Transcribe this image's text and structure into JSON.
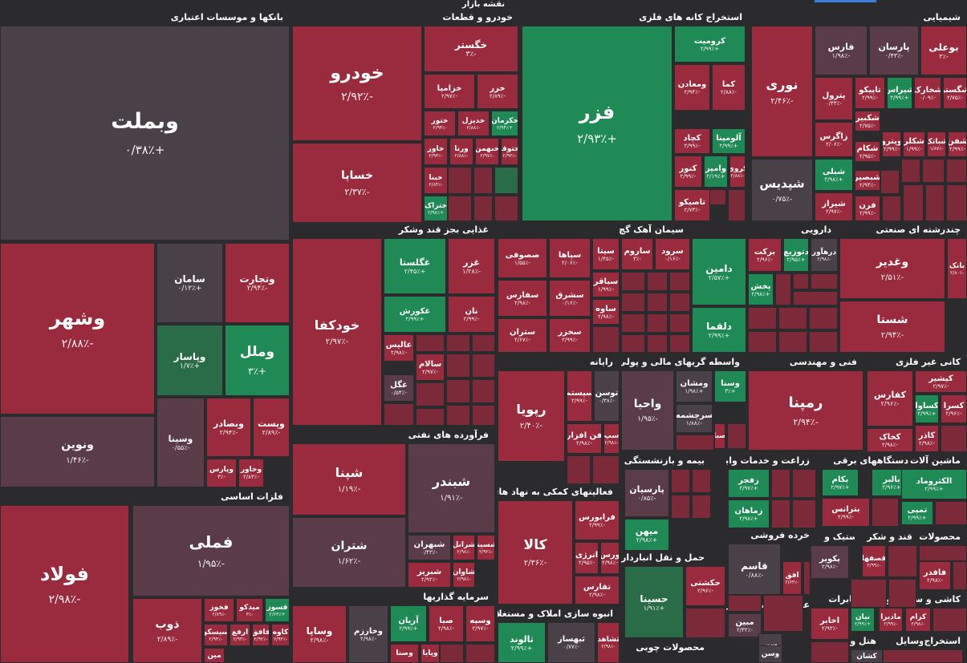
{
  "title": "نقشه بازار",
  "colors": {
    "red": "#9a2a3d",
    "red_dark": "#7c2a3a",
    "green": "#1f8a55",
    "green_dark": "#2a6b48",
    "neutral": "#4a4048",
    "neutral_red": "#5a3c48"
  },
  "headers": {
    "banks": "بانکها و موسسات اعتباری",
    "auto": "خودرو و قطعات",
    "metals_extract": "استخراج کانه های فلزی",
    "chemical": "شیمیایی",
    "basic_metals": "فلزات اساسی",
    "food": "غذایی بجز قند وشکر",
    "cement": "سیمان آهک گچ",
    "pharma": "دارویی",
    "multi": "چندرشته ای صنعتی",
    "refinery": "فرآورده های نفتی",
    "computer": "رایانه",
    "financial": "واسطه گریهای مالی و پولی",
    "engineering": "فنی و مهندسی",
    "nonmetal": "کانی غیر فلزی",
    "support": "فعالیتهای کمکی به نهاد های مالی",
    "insurance": "بیمه و بازنشستگی",
    "agri": "زراعت و خدمات وابسته",
    "electric": "دستگاههای برقی",
    "machinery": "ماشین آلات و",
    "investment": "سرمایه گذاریها",
    "construction": "انبوه سازی املاک و مستغلات",
    "transport": "حمل و نقل انبارداری و",
    "retail": "خرده فروشی",
    "rubber": "لاستیک و",
    "sugar": "قند و شکر",
    "products": "محصولات",
    "utility": "عرضه برق،گاز،بخار و",
    "telecom": "مخابرات",
    "products2": "محصولات",
    "ceramic": "کاشی و سرامیک",
    "wood": "محصولات چوبی",
    "hotel": "هتل و",
    "tools": "وسایل",
    "extraction2": "استخراج"
  },
  "tiles": [
    {
      "id": "vbmellat",
      "name": "وبملت",
      "val": "+۰/۳۸٪"
    },
    {
      "id": "vshahr",
      "name": "وشهر",
      "val": "-۲/۸۸٪"
    },
    {
      "id": "saman",
      "name": "سامان",
      "val": "+۰/۱۲٪"
    },
    {
      "id": "vtejarat",
      "name": "وتجارت",
      "val": "-۲/۹۴٪"
    },
    {
      "id": "vpasar",
      "name": "وپاسار",
      "val": "+۱/۷٪"
    },
    {
      "id": "vmellal",
      "name": "وملل",
      "val": "+۳٪"
    },
    {
      "id": "vnovin",
      "name": "ونوین",
      "val": "-۱/۴۶٪"
    },
    {
      "id": "vsina",
      "name": "وسینا",
      "val": "-۰/۵۵٪"
    },
    {
      "id": "vbsader",
      "name": "وبصادر",
      "val": "-۲/۹۴٪"
    },
    {
      "id": "vpost",
      "name": "وپست",
      "val": "-۲/۸۹٪"
    },
    {
      "id": "vkhavar",
      "name": "وخاور",
      "val": "-۲/۸۳٪"
    },
    {
      "id": "vparis",
      "name": "وپارس",
      "val": "-۳٪"
    },
    {
      "id": "khodro",
      "name": "خودرو",
      "val": "-۲/۹۲٪"
    },
    {
      "id": "khsapa",
      "name": "خساپا",
      "val": "-۲/۳۷٪"
    },
    {
      "id": "khgostar",
      "name": "خگستر",
      "val": "-۳٪"
    },
    {
      "id": "khzamia",
      "name": "خزامیا",
      "val": "-۲/۹۷٪"
    },
    {
      "id": "khzar",
      "name": "خزر",
      "val": "-۲/۸۹٪"
    },
    {
      "id": "khtoor",
      "name": "ختور",
      "val": "-۲/۹۴٪"
    },
    {
      "id": "khdizel",
      "name": "خدیزل",
      "val": "-۲/۸۸٪"
    },
    {
      "id": "khkerman",
      "name": "خکرمان",
      "val": "+۲/۹۴٪"
    },
    {
      "id": "khavar",
      "name": "خاور",
      "val": "-۲/۹۳٪"
    },
    {
      "id": "vrana",
      "name": "ورنا",
      "val": "-۲/۸۸٪"
    },
    {
      "id": "khbahman",
      "name": "خبهمن",
      "val": "-۲/۹۷٪"
    },
    {
      "id": "khtoko",
      "name": "ختوقا",
      "val": "-۲/۹۳٪"
    },
    {
      "id": "khbenz",
      "name": "خبنا",
      "val": "-۲/۸۴٪"
    },
    {
      "id": "khtrak",
      "name": "ختراک",
      "val": "+۲/۹۸٪"
    },
    {
      "id": "fazar",
      "name": "فزر",
      "val": "+۲/۹۳٪"
    },
    {
      "id": "kromit",
      "name": "کرومیت",
      "val": "+۲/۹۹٪"
    },
    {
      "id": "madan",
      "name": "ومعادن",
      "val": "-۲/۹۴٪"
    },
    {
      "id": "kama",
      "name": "کما",
      "val": "-۲/۸۸٪"
    },
    {
      "id": "kchad",
      "name": "کچاد",
      "val": "-۲/۹۹٪"
    },
    {
      "id": "alumina",
      "name": "آلومینا",
      "val": "+۲/۹۹٪"
    },
    {
      "id": "knoor",
      "name": "کنور",
      "val": "-۲/۹۹٪"
    },
    {
      "id": "vamir",
      "name": "وامیر",
      "val": "+۲/۱۹٪"
    },
    {
      "id": "kgol",
      "name": "کروی",
      "val": "-۲/۸۸٪"
    },
    {
      "id": "tasisko",
      "name": "تاصیکو",
      "val": "-۲/۷۳٪"
    },
    {
      "id": "noori",
      "name": "نوری",
      "val": "-۲/۴۶٪"
    },
    {
      "id": "shepdis",
      "name": "شپدیس",
      "val": "-۰/۷۵٪"
    },
    {
      "id": "fars",
      "name": "فارس",
      "val": "-۱/۹۸٪"
    },
    {
      "id": "parsan",
      "name": "پارسان",
      "val": "-۰/۴۳٪"
    },
    {
      "id": "buali",
      "name": "بوعلی",
      "val": "-۳٪"
    },
    {
      "id": "petrol",
      "name": "پترول",
      "val": "-۰/۴۳٪"
    },
    {
      "id": "tapiko",
      "name": "تاپیکو",
      "val": "-۲/۹۹٪"
    },
    {
      "id": "shiras",
      "name": "شیراس",
      "val": "+۲/۹۹٪"
    },
    {
      "id": "shkharak",
      "name": "شخارک",
      "val": "-۰/۰۹٪"
    },
    {
      "id": "shgostar",
      "name": "شگستر",
      "val": "-۲/۷۵٪"
    },
    {
      "id": "zagros",
      "name": "زاگرس",
      "val": "-۲/۰۶٪"
    },
    {
      "id": "shkbir",
      "name": "شکبیر",
      "val": "-۲/۷۵٪"
    },
    {
      "id": "shkalar",
      "name": "شکلر",
      "val": "-۱/۹۹٪"
    },
    {
      "id": "shbatik",
      "name": "شباتک",
      "val": "-۱/۸۷٪"
    },
    {
      "id": "shafan",
      "name": "شفن",
      "val": "-۲/۹۹٪"
    },
    {
      "id": "shkam",
      "name": "شکام",
      "val": "-۲/۹۵٪"
    },
    {
      "id": "shiba",
      "name": "شبلی",
      "val": "+۲/۹۸٪"
    },
    {
      "id": "vitro",
      "name": "ویترو",
      "val": "-۲/۹۹٪"
    },
    {
      "id": "shbasir",
      "name": "شبصیر",
      "val": "-۲/۹۴٪"
    },
    {
      "id": "shiraz",
      "name": "شیراز",
      "val": "-۲/۹۷٪"
    },
    {
      "id": "faran",
      "name": "فرن",
      "val": "-۲/۹۹٪"
    },
    {
      "id": "foolad",
      "name": "فولاد",
      "val": "-۲/۹۸٪"
    },
    {
      "id": "fameli",
      "name": "فملی",
      "val": "-۱/۹۵٪"
    },
    {
      "id": "zob",
      "name": "ذوب",
      "val": "-۲/۸۹٪"
    },
    {
      "id": "fkhoz",
      "name": "فخوز",
      "val": "-۲/۸۹٪"
    },
    {
      "id": "midko",
      "name": "میدکو",
      "val": "-۳٪"
    },
    {
      "id": "fasoz",
      "name": "فسوز",
      "val": "+۲/۶۳٪"
    },
    {
      "id": "sisko",
      "name": "سیسکو",
      "val": "-۲/۹۴٪"
    },
    {
      "id": "arfa",
      "name": "ارفع",
      "val": "-۲/۹۴٪"
    },
    {
      "id": "faghaf",
      "name": "فافق",
      "val": "-۲/۹۲٪"
    },
    {
      "id": "kave",
      "name": "کاوه",
      "val": "-۲/۹۴٪"
    },
    {
      "id": "mein",
      "name": "مین",
      "val": ""
    },
    {
      "id": "khodkafa",
      "name": "خودکفا",
      "val": "-۲/۹۷٪"
    },
    {
      "id": "ghgolesta",
      "name": "غگلستا",
      "val": "+۲/۴۵٪"
    },
    {
      "id": "ghazar",
      "name": "غزر",
      "val": "-۱/۲۸٪"
    },
    {
      "id": "ghkorosh",
      "name": "غکورش",
      "val": "+۲/۹۹٪"
    },
    {
      "id": "nan",
      "name": "نان",
      "val": "-۲/۹۹٪"
    },
    {
      "id": "alis",
      "name": "عالیس",
      "val": "-۲/۹۸٪"
    },
    {
      "id": "salam",
      "name": "سالام",
      "val": "-۲/۹۷٪"
    },
    {
      "id": "ghagol",
      "name": "غگل",
      "val": "-۰/۵۴٪"
    },
    {
      "id": "sasofi",
      "name": "صصوفی",
      "val": "-۱/۵۵٪"
    },
    {
      "id": "sipaha",
      "name": "سپاها",
      "val": "-۲/۰۶٪"
    },
    {
      "id": "sita",
      "name": "سیتا",
      "val": "-۱/۴۵٪"
    },
    {
      "id": "saroom",
      "name": "ساروم",
      "val": "-۳٪"
    },
    {
      "id": "sarood",
      "name": "سرود",
      "val": "-۰/۱۶٪"
    },
    {
      "id": "safars",
      "name": "سفارس",
      "val": "-۲/۹۸٪"
    },
    {
      "id": "sasharq",
      "name": "سشرق",
      "val": "-۰/۱۶٪"
    },
    {
      "id": "sabaghr",
      "name": "سباقر",
      "val": "-۱/۹۹٪"
    },
    {
      "id": "sastran",
      "name": "ستران",
      "val": "-۲/۶۷٪"
    },
    {
      "id": "sakhzar",
      "name": "سخزر",
      "val": "-۲/۹۹٪"
    },
    {
      "id": "saveh",
      "name": "ساوه",
      "val": "-۲/۹۸٪"
    },
    {
      "id": "damin",
      "name": "دامین",
      "val": "+۲/۵۷٪"
    },
    {
      "id": "barakat",
      "name": "برکت",
      "val": "-۲/۹۶٪"
    },
    {
      "id": "dtozie",
      "name": "دتوزیع",
      "val": "+۲/۹۵٪"
    },
    {
      "id": "darhavar",
      "name": "درهآور",
      "val": "-۲/۹۸٪"
    },
    {
      "id": "pakhsh",
      "name": "پخش",
      "val": "+۲/۹۸٪"
    },
    {
      "id": "dalqma",
      "name": "دلقما",
      "val": "+۲/۹۹٪"
    },
    {
      "id": "vghadir",
      "name": "وغدیر",
      "val": "-۲/۵۱٪"
    },
    {
      "id": "bank",
      "name": "بانک",
      "val": "-۲/۸۰٪"
    },
    {
      "id": "shasta",
      "name": "شستا",
      "val": "-۲/۹۴٪"
    },
    {
      "id": "shpena",
      "name": "شپنا",
      "val": "-۱/۱۹٪"
    },
    {
      "id": "shbandar",
      "name": "شبندر",
      "val": "-۱/۹۱٪"
    },
    {
      "id": "shtran",
      "name": "شتران",
      "val": "-۱/۶۲٪"
    },
    {
      "id": "shbahran",
      "name": "شبهران",
      "val": "-۰/۴۳٪"
    },
    {
      "id": "shranol",
      "name": "شرانل",
      "val": "-۲/۹۸٪"
    },
    {
      "id": "shesina",
      "name": "شسینا",
      "val": "-۲/۹۲٪"
    },
    {
      "id": "shtabriz",
      "name": "شبریز",
      "val": "-۲/۹۲٪"
    },
    {
      "id": "shavan",
      "name": "شاوان",
      "val": "-۲/۹۸٪"
    },
    {
      "id": "rapia",
      "name": "رپویا",
      "val": "-۲/۴۰٪"
    },
    {
      "id": "sistem",
      "name": "سیستم",
      "val": "-۲/۹۹٪"
    },
    {
      "id": "tosan",
      "name": "توسن",
      "val": "-۰/۳۸٪"
    },
    {
      "id": "fanafzar",
      "name": "فن افزار",
      "val": "-۲/۹۸٪"
    },
    {
      "id": "sep",
      "name": "سپ",
      "val": "-۲/۹۸٪"
    },
    {
      "id": "vahia",
      "name": "واحیا",
      "val": "-۱/۹۵٪"
    },
    {
      "id": "vmoshan",
      "name": "ومشان",
      "val": "+۱/۹۸٪"
    },
    {
      "id": "vsana",
      "name": "وسنا",
      "val": "+۳٪"
    },
    {
      "id": "sarchesh",
      "name": "سرچشمه",
      "val": "-۱/۸۸٪"
    },
    {
      "id": "saba",
      "name": "صبا",
      "val": ""
    },
    {
      "id": "rempana",
      "name": "رمپنا",
      "val": "-۲/۹۴٪"
    },
    {
      "id": "kafaras",
      "name": "کفارس",
      "val": "-۲/۹۶٪"
    },
    {
      "id": "kshisher",
      "name": "کیشیر",
      "val": "-۲/۹۷٪"
    },
    {
      "id": "ksava",
      "name": "کساوا",
      "val": "+۲/۹۹٪"
    },
    {
      "id": "kasra",
      "name": "کسرا",
      "val": "-۲/۹۶٪"
    },
    {
      "id": "kakhak",
      "name": "کخاک",
      "val": "-۲/۹۸٪"
    },
    {
      "id": "kazar",
      "name": "کاذر",
      "val": "-۲/۹۸٪"
    },
    {
      "id": "kala",
      "name": "کالا",
      "val": "-۲/۳۶٪"
    },
    {
      "id": "faraboors",
      "name": "فرابورس",
      "val": "-۲/۹۹٪"
    },
    {
      "id": "energy",
      "name": "انرژی",
      "val": "-۲/۹۵٪"
    },
    {
      "id": "varas",
      "name": "ورس",
      "val": "-۲/۹۸٪"
    },
    {
      "id": "tafars",
      "name": "تفارس",
      "val": "-۲/۹۸٪"
    },
    {
      "id": "parsian",
      "name": "پارسیان",
      "val": "-۰/۸۵٪"
    },
    {
      "id": "mihan",
      "name": "میهن",
      "val": "+۲/۹۸٪"
    },
    {
      "id": "zafger",
      "name": "زفجر",
      "val": "+۲/۹۷٪"
    },
    {
      "id": "zamahan",
      "name": "زماهان",
      "val": "+۲/۹۸٪"
    },
    {
      "id": "bkam",
      "name": "بکام",
      "val": "+۲/۹۷٪"
    },
    {
      "id": "batrans",
      "name": "بترانس",
      "val": "-۲/۹۹٪"
    },
    {
      "id": "bbalbar",
      "name": "بالبر",
      "val": "+۲/۹۶٪"
    },
    {
      "id": "electromad",
      "name": "الکتروماد",
      "val": "+۲/۹۹٪"
    },
    {
      "id": "tampi",
      "name": "تمپی",
      "val": "+۲/۹۹٪"
    },
    {
      "id": "vasapa",
      "name": "وساپا",
      "val": "-۲/۹۸٪"
    },
    {
      "id": "vkharazm",
      "name": "وخارزم",
      "val": "-۲/۹۸٪"
    },
    {
      "id": "arian",
      "name": "آریان",
      "val": "+۲/۹۹٪"
    },
    {
      "id": "saba2",
      "name": "صبا",
      "val": "-۲/۹۸٪"
    },
    {
      "id": "vsapeh",
      "name": "وسپه",
      "val": "-۲/۹۷٪"
    },
    {
      "id": "vsana2",
      "name": "وصنا",
      "val": ""
    },
    {
      "id": "vapaya",
      "name": "وپایا",
      "val": ""
    },
    {
      "id": "thalvand",
      "name": "ثالوند",
      "val": "+۲/۹۹٪"
    },
    {
      "id": "tbahsaz",
      "name": "ثبهساز",
      "val": "-۰/۷۷٪"
    },
    {
      "id": "thshahed",
      "name": "ثشاهد",
      "val": "-۲/۹۸٪"
    },
    {
      "id": "hsina",
      "name": "حسینا",
      "val": "+۱/۹۱٪"
    },
    {
      "id": "hkashti",
      "name": "حکشتی",
      "val": "-۲/۹۶٪"
    },
    {
      "id": "ghasem",
      "name": "قاسم",
      "val": "-۰/۸۸٪"
    },
    {
      "id": "ofagh",
      "name": "افق",
      "val": "-۲/۶۳٪"
    },
    {
      "id": "pakvir",
      "name": "پکویر",
      "val": "-۲/۹۸٪"
    },
    {
      "id": "ghasfaha",
      "name": "قصفها",
      "val": "-۲/۹۹٪"
    },
    {
      "id": "mobin",
      "name": "مبین",
      "val": "-۲/۳۲٪"
    },
    {
      "id": "akhabar",
      "name": "اخابر",
      "val": "-۲/۹۳٪"
    },
    {
      "id": "niyan",
      "name": "نیان",
      "val": "+۲/۹۹٪"
    },
    {
      "id": "madira",
      "name": "مادیرا",
      "val": "-۲/۹۹٪"
    },
    {
      "id": "kram",
      "name": "کرام",
      "val": "-۲/۹۸٪"
    },
    {
      "id": "fafdar",
      "name": "فافدر",
      "val": "-۲/۹۸٪"
    },
    {
      "id": "kashan",
      "name": "کشان",
      "val": ""
    },
    {
      "id": "vasin",
      "name": "سن",
      "val": ""
    },
    {
      "id": "vasn",
      "name": "وسن",
      "val": ""
    }
  ]
}
